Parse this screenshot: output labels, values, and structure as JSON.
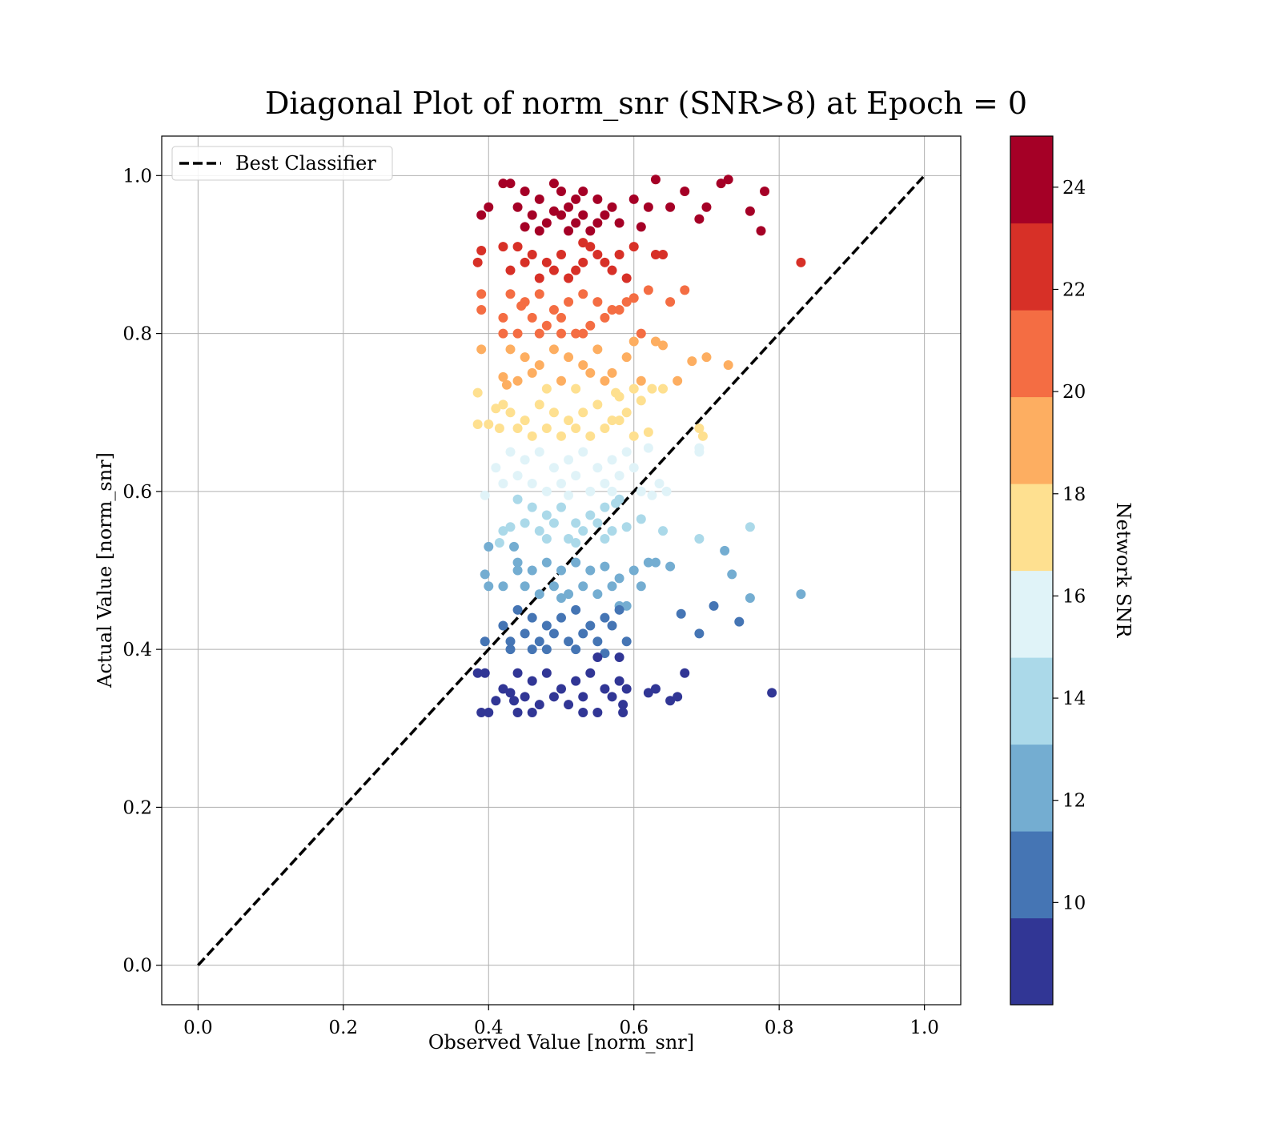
{
  "chart_data": {
    "type": "scatter",
    "title": "Diagonal Plot of norm_snr (SNR>8) at Epoch = 0",
    "xlabel": "Observed Value [norm_snr]",
    "ylabel": "Actual Value [norm_snr]",
    "xlim": [
      -0.05,
      1.05
    ],
    "ylim": [
      -0.05,
      1.05
    ],
    "xticks": [
      0.0,
      0.2,
      0.4,
      0.6,
      0.8,
      1.0
    ],
    "yticks": [
      0.0,
      0.2,
      0.4,
      0.6,
      0.8,
      1.0
    ],
    "xtick_labels": [
      "0.0",
      "0.2",
      "0.4",
      "0.6",
      "0.8",
      "1.0"
    ],
    "ytick_labels": [
      "0.0",
      "0.2",
      "0.4",
      "0.6",
      "0.8",
      "1.0"
    ],
    "grid": true,
    "legend": {
      "position": "top-left",
      "entries": [
        {
          "label": "Best Classifier",
          "style": "dashed",
          "color": "#000000"
        }
      ]
    },
    "reference_line": {
      "name": "Best Classifier",
      "x": [
        0.0,
        1.0
      ],
      "y": [
        0.0,
        1.0
      ],
      "style": "dashed"
    },
    "colorbar": {
      "label": "Network SNR",
      "range": [
        8,
        25
      ],
      "ticks": [
        10,
        12,
        14,
        16,
        18,
        20,
        22,
        24
      ],
      "tick_labels": [
        "10",
        "12",
        "14",
        "16",
        "18",
        "20",
        "22",
        "24"
      ],
      "colormap": "RdYlBu_r (discrete, 10 bands)",
      "band_colors": [
        "#313695",
        "#4575b4",
        "#74add1",
        "#abd9e9",
        "#e0f3f8",
        "#fee090",
        "#fdae61",
        "#f46d43",
        "#d73027",
        "#a50026"
      ]
    },
    "points": [
      [
        0.43,
        0.99
      ],
      [
        0.45,
        0.98
      ],
      [
        0.47,
        0.97
      ],
      [
        0.49,
        0.99
      ],
      [
        0.51,
        0.96
      ],
      [
        0.53,
        0.98
      ],
      [
        0.55,
        0.97
      ],
      [
        0.57,
        0.96
      ],
      [
        0.6,
        0.97
      ],
      [
        0.62,
        0.96
      ],
      [
        0.46,
        0.95
      ],
      [
        0.48,
        0.94
      ],
      [
        0.5,
        0.95
      ],
      [
        0.52,
        0.94
      ],
      [
        0.54,
        0.93
      ],
      [
        0.56,
        0.95
      ],
      [
        0.58,
        0.94
      ],
      [
        0.44,
        0.96
      ],
      [
        0.42,
        0.99
      ],
      [
        0.39,
        0.95
      ],
      [
        0.4,
        0.96
      ],
      [
        0.63,
        0.995
      ],
      [
        0.67,
        0.98
      ],
      [
        0.7,
        0.96
      ],
      [
        0.72,
        0.99
      ],
      [
        0.73,
        0.995
      ],
      [
        0.69,
        0.945
      ],
      [
        0.76,
        0.955
      ],
      [
        0.78,
        0.98
      ],
      [
        0.775,
        0.93
      ],
      [
        0.65,
        0.96
      ],
      [
        0.61,
        0.935
      ],
      [
        0.5,
        0.98
      ],
      [
        0.52,
        0.97
      ],
      [
        0.47,
        0.93
      ],
      [
        0.55,
        0.94
      ],
      [
        0.53,
        0.95
      ],
      [
        0.49,
        0.955
      ],
      [
        0.51,
        0.93
      ],
      [
        0.45,
        0.935
      ],
      [
        0.44,
        0.91
      ],
      [
        0.46,
        0.9
      ],
      [
        0.48,
        0.89
      ],
      [
        0.5,
        0.9
      ],
      [
        0.52,
        0.88
      ],
      [
        0.54,
        0.91
      ],
      [
        0.56,
        0.89
      ],
      [
        0.58,
        0.9
      ],
      [
        0.6,
        0.91
      ],
      [
        0.47,
        0.87
      ],
      [
        0.49,
        0.88
      ],
      [
        0.51,
        0.87
      ],
      [
        0.53,
        0.89
      ],
      [
        0.55,
        0.9
      ],
      [
        0.43,
        0.88
      ],
      [
        0.39,
        0.905
      ],
      [
        0.385,
        0.89
      ],
      [
        0.63,
        0.9
      ],
      [
        0.64,
        0.9
      ],
      [
        0.83,
        0.89
      ],
      [
        0.42,
        0.91
      ],
      [
        0.57,
        0.88
      ],
      [
        0.45,
        0.89
      ],
      [
        0.59,
        0.87
      ],
      [
        0.53,
        0.915
      ],
      [
        0.43,
        0.85
      ],
      [
        0.45,
        0.84
      ],
      [
        0.47,
        0.85
      ],
      [
        0.49,
        0.83
      ],
      [
        0.51,
        0.84
      ],
      [
        0.53,
        0.85
      ],
      [
        0.55,
        0.84
      ],
      [
        0.57,
        0.83
      ],
      [
        0.59,
        0.84
      ],
      [
        0.62,
        0.855
      ],
      [
        0.46,
        0.82
      ],
      [
        0.48,
        0.81
      ],
      [
        0.5,
        0.82
      ],
      [
        0.52,
        0.8
      ],
      [
        0.54,
        0.81
      ],
      [
        0.56,
        0.82
      ],
      [
        0.58,
        0.83
      ],
      [
        0.65,
        0.84
      ],
      [
        0.67,
        0.855
      ],
      [
        0.39,
        0.85
      ],
      [
        0.39,
        0.83
      ],
      [
        0.42,
        0.82
      ],
      [
        0.42,
        0.8
      ],
      [
        0.44,
        0.8
      ],
      [
        0.47,
        0.8
      ],
      [
        0.5,
        0.8
      ],
      [
        0.53,
        0.8
      ],
      [
        0.61,
        0.8
      ],
      [
        0.445,
        0.835
      ],
      [
        0.6,
        0.845
      ],
      [
        0.43,
        0.78
      ],
      [
        0.45,
        0.77
      ],
      [
        0.47,
        0.76
      ],
      [
        0.49,
        0.78
      ],
      [
        0.51,
        0.77
      ],
      [
        0.53,
        0.76
      ],
      [
        0.55,
        0.78
      ],
      [
        0.57,
        0.75
      ],
      [
        0.59,
        0.77
      ],
      [
        0.63,
        0.79
      ],
      [
        0.44,
        0.74
      ],
      [
        0.46,
        0.75
      ],
      [
        0.48,
        0.73
      ],
      [
        0.5,
        0.74
      ],
      [
        0.52,
        0.73
      ],
      [
        0.54,
        0.75
      ],
      [
        0.56,
        0.74
      ],
      [
        0.58,
        0.72
      ],
      [
        0.61,
        0.74
      ],
      [
        0.64,
        0.73
      ],
      [
        0.66,
        0.74
      ],
      [
        0.68,
        0.765
      ],
      [
        0.7,
        0.77
      ],
      [
        0.73,
        0.76
      ],
      [
        0.39,
        0.78
      ],
      [
        0.385,
        0.725
      ],
      [
        0.42,
        0.745
      ],
      [
        0.425,
        0.735
      ],
      [
        0.64,
        0.785
      ],
      [
        0.6,
        0.79
      ],
      [
        0.43,
        0.7
      ],
      [
        0.45,
        0.69
      ],
      [
        0.47,
        0.71
      ],
      [
        0.49,
        0.7
      ],
      [
        0.51,
        0.69
      ],
      [
        0.53,
        0.7
      ],
      [
        0.55,
        0.71
      ],
      [
        0.57,
        0.69
      ],
      [
        0.59,
        0.7
      ],
      [
        0.44,
        0.68
      ],
      [
        0.46,
        0.67
      ],
      [
        0.48,
        0.68
      ],
      [
        0.5,
        0.67
      ],
      [
        0.52,
        0.68
      ],
      [
        0.54,
        0.67
      ],
      [
        0.56,
        0.68
      ],
      [
        0.58,
        0.69
      ],
      [
        0.6,
        0.67
      ],
      [
        0.62,
        0.675
      ],
      [
        0.4,
        0.685
      ],
      [
        0.385,
        0.685
      ],
      [
        0.42,
        0.71
      ],
      [
        0.41,
        0.705
      ],
      [
        0.61,
        0.715
      ],
      [
        0.625,
        0.73
      ],
      [
        0.69,
        0.68
      ],
      [
        0.695,
        0.67
      ],
      [
        0.6,
        0.73
      ],
      [
        0.575,
        0.725
      ],
      [
        0.415,
        0.68
      ],
      [
        0.43,
        0.65
      ],
      [
        0.45,
        0.64
      ],
      [
        0.47,
        0.65
      ],
      [
        0.49,
        0.63
      ],
      [
        0.51,
        0.64
      ],
      [
        0.53,
        0.65
      ],
      [
        0.55,
        0.63
      ],
      [
        0.57,
        0.64
      ],
      [
        0.59,
        0.65
      ],
      [
        0.62,
        0.655
      ],
      [
        0.44,
        0.62
      ],
      [
        0.46,
        0.61
      ],
      [
        0.48,
        0.6
      ],
      [
        0.5,
        0.61
      ],
      [
        0.52,
        0.62
      ],
      [
        0.54,
        0.6
      ],
      [
        0.56,
        0.61
      ],
      [
        0.58,
        0.62
      ],
      [
        0.61,
        0.6
      ],
      [
        0.635,
        0.61
      ],
      [
        0.645,
        0.6
      ],
      [
        0.69,
        0.655
      ],
      [
        0.69,
        0.65
      ],
      [
        0.41,
        0.63
      ],
      [
        0.395,
        0.595
      ],
      [
        0.6,
        0.63
      ],
      [
        0.625,
        0.595
      ],
      [
        0.42,
        0.61
      ],
      [
        0.57,
        0.6
      ],
      [
        0.51,
        0.595
      ],
      [
        0.44,
        0.59
      ],
      [
        0.46,
        0.58
      ],
      [
        0.48,
        0.57
      ],
      [
        0.5,
        0.58
      ],
      [
        0.52,
        0.56
      ],
      [
        0.54,
        0.57
      ],
      [
        0.56,
        0.58
      ],
      [
        0.58,
        0.59
      ],
      [
        0.45,
        0.56
      ],
      [
        0.47,
        0.55
      ],
      [
        0.49,
        0.56
      ],
      [
        0.51,
        0.54
      ],
      [
        0.53,
        0.55
      ],
      [
        0.55,
        0.56
      ],
      [
        0.57,
        0.55
      ],
      [
        0.59,
        0.555
      ],
      [
        0.61,
        0.565
      ],
      [
        0.64,
        0.55
      ],
      [
        0.69,
        0.54
      ],
      [
        0.725,
        0.525
      ],
      [
        0.76,
        0.555
      ],
      [
        0.42,
        0.55
      ],
      [
        0.43,
        0.555
      ],
      [
        0.4,
        0.53
      ],
      [
        0.415,
        0.535
      ],
      [
        0.435,
        0.53
      ],
      [
        0.48,
        0.54
      ],
      [
        0.52,
        0.535
      ],
      [
        0.575,
        0.585
      ],
      [
        0.56,
        0.54
      ],
      [
        0.44,
        0.51
      ],
      [
        0.46,
        0.5
      ],
      [
        0.48,
        0.51
      ],
      [
        0.5,
        0.5
      ],
      [
        0.52,
        0.51
      ],
      [
        0.54,
        0.5
      ],
      [
        0.56,
        0.505
      ],
      [
        0.58,
        0.49
      ],
      [
        0.6,
        0.5
      ],
      [
        0.62,
        0.51
      ],
      [
        0.45,
        0.48
      ],
      [
        0.47,
        0.47
      ],
      [
        0.49,
        0.48
      ],
      [
        0.51,
        0.47
      ],
      [
        0.53,
        0.48
      ],
      [
        0.55,
        0.47
      ],
      [
        0.57,
        0.48
      ],
      [
        0.61,
        0.48
      ],
      [
        0.65,
        0.505
      ],
      [
        0.735,
        0.495
      ],
      [
        0.76,
        0.465
      ],
      [
        0.83,
        0.47
      ],
      [
        0.395,
        0.495
      ],
      [
        0.4,
        0.48
      ],
      [
        0.42,
        0.48
      ],
      [
        0.44,
        0.5
      ],
      [
        0.5,
        0.465
      ],
      [
        0.59,
        0.455
      ],
      [
        0.58,
        0.455
      ],
      [
        0.63,
        0.51
      ],
      [
        0.44,
        0.45
      ],
      [
        0.46,
        0.44
      ],
      [
        0.48,
        0.43
      ],
      [
        0.5,
        0.44
      ],
      [
        0.52,
        0.45
      ],
      [
        0.54,
        0.43
      ],
      [
        0.56,
        0.44
      ],
      [
        0.58,
        0.45
      ],
      [
        0.45,
        0.42
      ],
      [
        0.47,
        0.41
      ],
      [
        0.49,
        0.42
      ],
      [
        0.51,
        0.41
      ],
      [
        0.53,
        0.42
      ],
      [
        0.55,
        0.41
      ],
      [
        0.57,
        0.43
      ],
      [
        0.59,
        0.41
      ],
      [
        0.43,
        0.41
      ],
      [
        0.395,
        0.41
      ],
      [
        0.42,
        0.43
      ],
      [
        0.43,
        0.4
      ],
      [
        0.48,
        0.4
      ],
      [
        0.52,
        0.4
      ],
      [
        0.56,
        0.395
      ],
      [
        0.58,
        0.39
      ],
      [
        0.665,
        0.445
      ],
      [
        0.69,
        0.42
      ],
      [
        0.71,
        0.455
      ],
      [
        0.745,
        0.435
      ],
      [
        0.55,
        0.39
      ],
      [
        0.46,
        0.4
      ],
      [
        0.44,
        0.37
      ],
      [
        0.46,
        0.36
      ],
      [
        0.48,
        0.37
      ],
      [
        0.5,
        0.35
      ],
      [
        0.52,
        0.36
      ],
      [
        0.54,
        0.37
      ],
      [
        0.56,
        0.35
      ],
      [
        0.58,
        0.36
      ],
      [
        0.45,
        0.34
      ],
      [
        0.47,
        0.33
      ],
      [
        0.49,
        0.34
      ],
      [
        0.51,
        0.33
      ],
      [
        0.53,
        0.34
      ],
      [
        0.55,
        0.32
      ],
      [
        0.57,
        0.34
      ],
      [
        0.59,
        0.35
      ],
      [
        0.43,
        0.345
      ],
      [
        0.435,
        0.335
      ],
      [
        0.39,
        0.32
      ],
      [
        0.4,
        0.32
      ],
      [
        0.385,
        0.37
      ],
      [
        0.395,
        0.37
      ],
      [
        0.41,
        0.335
      ],
      [
        0.44,
        0.32
      ],
      [
        0.53,
        0.32
      ],
      [
        0.585,
        0.32
      ],
      [
        0.585,
        0.33
      ],
      [
        0.62,
        0.345
      ],
      [
        0.63,
        0.35
      ],
      [
        0.65,
        0.335
      ],
      [
        0.66,
        0.34
      ],
      [
        0.67,
        0.37
      ],
      [
        0.79,
        0.345
      ],
      [
        0.46,
        0.32
      ],
      [
        0.42,
        0.35
      ]
    ],
    "point_snr": [
      24.3,
      24.6,
      24.1,
      24.8,
      23.9,
      24.5,
      24.2,
      24.0,
      24.4,
      24.1,
      23.7,
      23.6,
      23.8,
      23.5,
      23.4,
      23.9,
      23.6,
      24.0,
      24.7,
      23.6,
      23.9,
      24.8,
      24.5,
      23.9,
      24.6,
      24.7,
      23.6,
      23.9,
      24.4,
      23.4,
      23.9,
      23.5,
      24.5,
      24.2,
      23.4,
      23.6,
      23.8,
      23.9,
      23.4,
      23.5,
      22.5,
      22.3,
      22.2,
      22.4,
      22.0,
      22.6,
      22.1,
      22.3,
      22.6,
      21.8,
      22.0,
      21.8,
      22.2,
      22.4,
      22.1,
      22.6,
      22.2,
      22.4,
      22.5,
      22.2,
      22.6,
      22.0,
      22.2,
      21.7,
      22.7,
      21.1,
      20.9,
      21.2,
      20.6,
      20.9,
      21.2,
      20.9,
      20.6,
      20.9,
      21.3,
      20.4,
      20.1,
      20.4,
      19.9,
      20.1,
      20.4,
      20.6,
      20.9,
      21.3,
      21.2,
      20.6,
      20.4,
      19.9,
      19.9,
      19.9,
      19.9,
      19.9,
      19.9,
      20.7,
      21.1,
      19.3,
      19.1,
      18.8,
      19.3,
      19.1,
      18.8,
      19.3,
      18.5,
      19.1,
      19.7,
      18.4,
      18.6,
      18.1,
      18.4,
      18.1,
      18.6,
      18.4,
      17.8,
      18.4,
      18.1,
      18.4,
      19.0,
      19.1,
      18.8,
      19.3,
      17.9,
      18.4,
      18.2,
      19.4,
      19.6,
      17.4,
      17.1,
      17.6,
      17.4,
      17.1,
      17.4,
      17.6,
      17.1,
      17.4,
      16.8,
      16.5,
      16.8,
      16.5,
      16.8,
      16.5,
      16.8,
      17.1,
      16.5,
      16.6,
      16.9,
      16.9,
      17.6,
      17.5,
      17.6,
      18.1,
      16.8,
      16.5,
      18.1,
      18.0,
      16.8,
      16.1,
      15.8,
      16.1,
      15.5,
      15.8,
      16.1,
      15.5,
      15.8,
      16.1,
      16.2,
      15.2,
      14.9,
      15.2,
      14.9,
      15.2,
      15.2,
      14.9,
      15.2,
      14.9,
      14.9,
      15.2,
      16.2,
      16.1,
      15.5,
      14.8,
      15.5,
      14.8,
      15.2,
      15.2,
      14.9,
      14.6,
      14.3,
      14.0,
      14.3,
      13.7,
      14.0,
      14.3,
      14.6,
      13.7,
      13.4,
      13.7,
      13.2,
      13.4,
      13.7,
      13.4,
      13.6,
      13.9,
      13.4,
      13.1,
      12.9,
      13.7,
      13.4,
      13.6,
      12.9,
      13.1,
      12.9,
      13.2,
      13.1,
      14.4,
      13.2,
      12.4,
      12.1,
      12.4,
      12.1,
      12.4,
      12.1,
      12.2,
      11.9,
      12.1,
      12.4,
      11.9,
      11.6,
      11.9,
      11.6,
      11.9,
      11.6,
      11.9,
      11.9,
      12.2,
      12.0,
      11.5,
      11.6,
      12.0,
      11.9,
      11.9,
      12.1,
      11.5,
      11.4,
      11.4,
      12.4,
      11.1,
      10.9,
      10.6,
      10.9,
      11.1,
      10.6,
      10.9,
      11.1,
      10.4,
      10.1,
      10.4,
      10.1,
      10.4,
      10.1,
      10.6,
      10.1,
      10.1,
      10.1,
      10.6,
      9.9,
      9.9,
      9.9,
      9.8,
      9.7,
      11.0,
      10.4,
      11.1,
      10.9,
      9.7,
      9.9,
      9.3,
      9.0,
      9.3,
      8.8,
      9.0,
      9.3,
      8.8,
      9.0,
      8.6,
      8.4,
      8.6,
      8.4,
      8.6,
      8.2,
      8.6,
      8.8,
      8.7,
      8.5,
      8.2,
      8.2,
      9.3,
      9.3,
      8.5,
      8.2,
      8.2,
      8.2,
      8.4,
      8.7,
      8.8,
      8.5,
      8.6,
      9.3,
      8.7,
      8.2,
      8.8
    ]
  }
}
